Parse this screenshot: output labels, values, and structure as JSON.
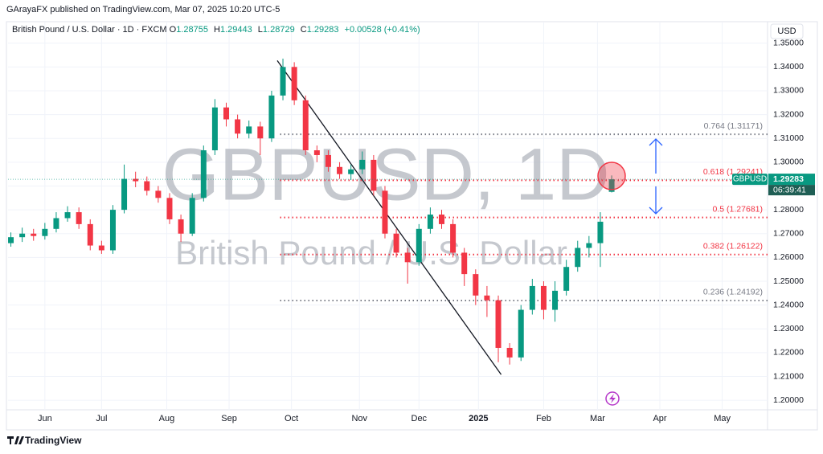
{
  "chart_data": {
    "type": "candlestick",
    "publisher": "GArayaFX published on TradingView.com, Mar 07, 2025 10:20 UTC-5",
    "title": "British Pound / U.S. Dollar · 1D · FXCM",
    "ohlc_keys": [
      "O",
      "H",
      "L",
      "C"
    ],
    "change": "+0.00528 (+0.41%)",
    "watermark": "GBPUSD, 1D",
    "watermark_subtitle": "British Pound / U.S. Dollar",
    "currency": "USD",
    "tag_symbol": "GBPUSD",
    "countdown": "06:39:41",
    "brand": "TradingView",
    "up_color": "#089981",
    "down_color": "#f23645",
    "x": [
      1,
      5,
      9,
      13,
      17,
      21,
      25,
      29,
      33,
      37,
      41,
      45,
      49,
      53,
      57,
      61,
      65,
      69,
      73,
      77,
      81,
      85,
      89,
      93,
      97,
      101,
      105,
      109,
      113,
      117,
      121,
      125,
      129,
      133,
      137,
      141,
      145,
      149,
      153,
      157,
      161,
      165,
      169,
      173,
      177,
      181,
      185,
      189,
      193,
      197,
      201,
      205,
      209,
      213
    ],
    "open": [
      1.266,
      1.2685,
      1.27,
      1.269,
      1.272,
      1.2765,
      1.279,
      1.274,
      1.265,
      1.263,
      1.28,
      1.293,
      1.292,
      1.288,
      1.285,
      1.276,
      1.27,
      1.285,
      1.305,
      1.323,
      1.318,
      1.312,
      1.315,
      1.31,
      1.328,
      1.34,
      1.326,
      1.305,
      1.303,
      1.298,
      1.295,
      1.297,
      1.301,
      1.288,
      1.27,
      1.262,
      1.258,
      1.272,
      1.278,
      1.274,
      1.262,
      1.253,
      1.244,
      1.242,
      1.222,
      1.218,
      1.238,
      1.248,
      1.238,
      1.246,
      1.256,
      1.264,
      1.266,
      1.28755
    ],
    "high": [
      1.2705,
      1.2725,
      1.272,
      1.2745,
      1.279,
      1.2815,
      1.281,
      1.276,
      1.267,
      1.282,
      1.299,
      1.296,
      1.294,
      1.29,
      1.287,
      1.278,
      1.287,
      1.307,
      1.3265,
      1.325,
      1.32,
      1.3175,
      1.317,
      1.33,
      1.3435,
      1.342,
      1.328,
      1.307,
      1.305,
      1.3,
      1.299,
      1.3045,
      1.303,
      1.29,
      1.272,
      1.264,
      1.274,
      1.281,
      1.28,
      1.276,
      1.264,
      1.255,
      1.248,
      1.244,
      1.224,
      1.24,
      1.251,
      1.25,
      1.25,
      1.259,
      1.267,
      1.269,
      1.279,
      1.29443
    ],
    "low": [
      1.2645,
      1.2665,
      1.267,
      1.2675,
      1.2705,
      1.275,
      1.272,
      1.263,
      1.2615,
      1.2615,
      1.2785,
      1.2895,
      1.286,
      1.283,
      1.274,
      1.2665,
      1.269,
      1.2835,
      1.303,
      1.315,
      1.31,
      1.31,
      1.303,
      1.3085,
      1.326,
      1.324,
      1.303,
      1.3,
      1.296,
      1.293,
      1.2925,
      1.295,
      1.286,
      1.268,
      1.26,
      1.249,
      1.2565,
      1.27,
      1.272,
      1.26,
      1.248,
      1.24,
      1.235,
      1.216,
      1.215,
      1.2165,
      1.236,
      1.234,
      1.233,
      1.244,
      1.254,
      1.26,
      1.256,
      1.28729
    ],
    "close": [
      1.2685,
      1.27,
      1.269,
      1.272,
      1.2765,
      1.279,
      1.274,
      1.265,
      1.263,
      1.28,
      1.293,
      1.292,
      1.288,
      1.285,
      1.276,
      1.27,
      1.285,
      1.305,
      1.323,
      1.318,
      1.312,
      1.315,
      1.31,
      1.328,
      1.34,
      1.326,
      1.305,
      1.303,
      1.298,
      1.295,
      1.297,
      1.301,
      1.288,
      1.27,
      1.262,
      1.258,
      1.272,
      1.278,
      1.274,
      1.262,
      1.253,
      1.244,
      1.242,
      1.222,
      1.218,
      1.238,
      1.248,
      1.238,
      1.246,
      1.256,
      1.264,
      1.266,
      1.275,
      1.29283
    ],
    "xlim": [
      0,
      268
    ],
    "xticks": [
      {
        "value": 13,
        "label": "Jun"
      },
      {
        "value": 33,
        "label": "Jul"
      },
      {
        "value": 56,
        "label": "Aug"
      },
      {
        "value": 78,
        "label": "Sep"
      },
      {
        "value": 100,
        "label": "Oct"
      },
      {
        "value": 124,
        "label": "Nov"
      },
      {
        "value": 145,
        "label": "Dec"
      },
      {
        "value": 166,
        "label": "2025"
      },
      {
        "value": 189,
        "label": "Feb"
      },
      {
        "value": 208,
        "label": "Mar"
      },
      {
        "value": 230,
        "label": "Apr"
      },
      {
        "value": 252,
        "label": "May"
      }
    ],
    "ylim": [
      1.196,
      1.358
    ],
    "yticks": [
      {
        "value": 1.2,
        "label": "1.20000"
      },
      {
        "value": 1.21,
        "label": "1.21000"
      },
      {
        "value": 1.22,
        "label": "1.22000"
      },
      {
        "value": 1.23,
        "label": "1.23000"
      },
      {
        "value": 1.24,
        "label": "1.24000"
      },
      {
        "value": 1.25,
        "label": "1.25000"
      },
      {
        "value": 1.26,
        "label": "1.26000"
      },
      {
        "value": 1.27,
        "label": "1.27000"
      },
      {
        "value": 1.28,
        "label": "1.28000"
      },
      {
        "value": 1.29,
        "label": "1.29000"
      },
      {
        "value": 1.3,
        "label": "1.30000"
      },
      {
        "value": 1.31,
        "label": "1.31000"
      },
      {
        "value": 1.32,
        "label": "1.32000"
      },
      {
        "value": 1.33,
        "label": "1.33000"
      },
      {
        "value": 1.34,
        "label": "1.34000"
      },
      {
        "value": 1.35,
        "label": "1.35000"
      }
    ],
    "grid": true,
    "fib_x_from": 96,
    "fib_levels": [
      {
        "value": 1.31171,
        "label": "0.764 (1.31171)",
        "color": "#787b86"
      },
      {
        "value": 1.29241,
        "label": "0.618 (1.29241)",
        "color": "#f23645"
      },
      {
        "value": 1.27681,
        "label": "0.5 (1.27681)",
        "color": "#f23645"
      },
      {
        "value": 1.26122,
        "label": "0.382 (1.26122)",
        "color": "#f23645"
      },
      {
        "value": 1.24192,
        "label": "0.236 (1.24192)",
        "color": "#787b86"
      }
    ],
    "trendline": {
      "x": [
        95,
        174
      ],
      "y": [
        1.3427,
        1.2108
      ],
      "color": "#131722"
    }
  }
}
